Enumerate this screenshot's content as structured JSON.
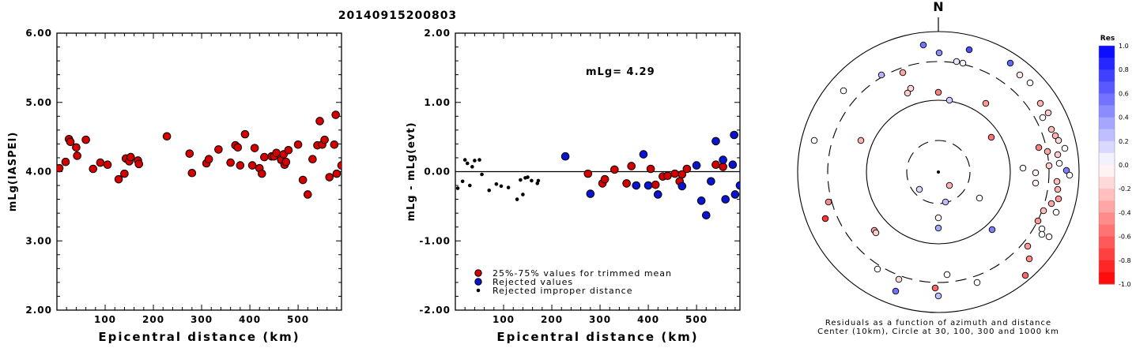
{
  "title": "20140915200803",
  "colors": {
    "trimmed": "#d40000",
    "rejected": "#0a14d0",
    "improper": "#000000"
  },
  "chart_data": [
    {
      "type": "scatter",
      "ylabel": "mLg(IASPEI)",
      "xlabel": "Epicentral distance (km)",
      "xlim": [
        0,
        590
      ],
      "ylim": [
        2.0,
        6.0
      ],
      "xticks": [
        "100",
        "200",
        "300",
        "400",
        "500"
      ],
      "yticks": [
        "2.00",
        "3.00",
        "4.00",
        "5.00",
        "6.00"
      ],
      "series": [
        {
          "marker": "trimmed",
          "points": [
            [
              5,
              4.05
            ],
            [
              18,
              4.14
            ],
            [
              25,
              4.47
            ],
            [
              28,
              4.43
            ],
            [
              40,
              4.35
            ],
            [
              42,
              4.23
            ],
            [
              60,
              4.46
            ],
            [
              75,
              4.04
            ],
            [
              90,
              4.13
            ],
            [
              105,
              4.1
            ],
            [
              128,
              3.89
            ],
            [
              140,
              3.97
            ],
            [
              143,
              4.19
            ],
            [
              150,
              4.15
            ],
            [
              153,
              4.21
            ],
            [
              168,
              4.16
            ],
            [
              170,
              4.11
            ],
            [
              228,
              4.51
            ],
            [
              275,
              4.26
            ],
            [
              280,
              3.98
            ],
            [
              310,
              4.12
            ],
            [
              315,
              4.18
            ],
            [
              335,
              4.32
            ],
            [
              360,
              4.13
            ],
            [
              370,
              4.38
            ],
            [
              375,
              4.35
            ],
            [
              380,
              4.09
            ],
            [
              390,
              4.54
            ],
            [
              405,
              4.09
            ],
            [
              410,
              4.34
            ],
            [
              420,
              4.05
            ],
            [
              425,
              3.97
            ],
            [
              430,
              4.21
            ],
            [
              445,
              4.22
            ],
            [
              450,
              4.22
            ],
            [
              455,
              4.27
            ],
            [
              465,
              4.17
            ],
            [
              470,
              4.25
            ],
            [
              472,
              4.1
            ],
            [
              475,
              4.14
            ],
            [
              480,
              4.31
            ],
            [
              500,
              4.39
            ],
            [
              510,
              3.88
            ],
            [
              520,
              3.67
            ],
            [
              530,
              4.18
            ],
            [
              540,
              4.38
            ],
            [
              545,
              4.73
            ],
            [
              550,
              4.39
            ],
            [
              555,
              4.46
            ],
            [
              565,
              3.92
            ],
            [
              575,
              4.39
            ],
            [
              578,
              4.82
            ],
            [
              580,
              3.97
            ],
            [
              590,
              4.09
            ]
          ]
        }
      ]
    },
    {
      "type": "scatter",
      "ylabel": "mLg - mLg(evt)",
      "xlabel": "Epicentral distance (km)",
      "xlim": [
        0,
        590
      ],
      "ylim": [
        -2.0,
        2.0
      ],
      "xticks": [
        "100",
        "200",
        "300",
        "400",
        "500"
      ],
      "yticks": [
        "-2.00",
        "-1.00",
        "0.00",
        "1.00",
        "2.00"
      ],
      "annotation": "mLg= 4.29",
      "legend": [
        {
          "marker": "trimmed",
          "label": "25%-75% values for trimmed mean"
        },
        {
          "marker": "rejected",
          "label": "Rejected values"
        },
        {
          "marker": "improper",
          "label": "Rejected improper distance"
        }
      ],
      "series": [
        {
          "marker": "improper",
          "points": [
            [
              5,
              -0.24
            ],
            [
              15,
              -0.14
            ],
            [
              20,
              0.17
            ],
            [
              25,
              0.12
            ],
            [
              30,
              -0.2
            ],
            [
              35,
              0.07
            ],
            [
              40,
              0.16
            ],
            [
              50,
              0.17
            ],
            [
              55,
              -0.04
            ],
            [
              70,
              -0.27
            ],
            [
              85,
              -0.18
            ],
            [
              95,
              -0.21
            ],
            [
              110,
              -0.23
            ],
            [
              128,
              -0.4
            ],
            [
              135,
              -0.12
            ],
            [
              140,
              -0.33
            ],
            [
              145,
              -0.09
            ],
            [
              150,
              -0.08
            ],
            [
              158,
              -0.13
            ],
            [
              170,
              -0.17
            ],
            [
              172,
              -0.13
            ]
          ]
        },
        {
          "marker": "trimmed",
          "points": [
            [
              275,
              -0.03
            ],
            [
              305,
              -0.17
            ],
            [
              310,
              -0.11
            ],
            [
              330,
              0.03
            ],
            [
              355,
              -0.17
            ],
            [
              365,
              0.08
            ],
            [
              405,
              0.04
            ],
            [
              415,
              -0.19
            ],
            [
              430,
              -0.07
            ],
            [
              440,
              -0.06
            ],
            [
              455,
              -0.03
            ],
            [
              465,
              -0.14
            ],
            [
              470,
              -0.04
            ],
            [
              480,
              0.04
            ],
            [
              540,
              0.1
            ],
            [
              555,
              0.07
            ]
          ]
        },
        {
          "marker": "rejected",
          "points": [
            [
              228,
              0.22
            ],
            [
              280,
              -0.32
            ],
            [
              375,
              -0.2
            ],
            [
              390,
              0.25
            ],
            [
              400,
              -0.2
            ],
            [
              420,
              -0.33
            ],
            [
              470,
              -0.21
            ],
            [
              500,
              0.09
            ],
            [
              510,
              -0.42
            ],
            [
              520,
              -0.63
            ],
            [
              530,
              -0.14
            ],
            [
              540,
              0.44
            ],
            [
              555,
              0.17
            ],
            [
              560,
              -0.4
            ],
            [
              575,
              0.1
            ],
            [
              578,
              0.53
            ],
            [
              580,
              -0.33
            ],
            [
              590,
              -0.2
            ]
          ]
        }
      ]
    },
    {
      "type": "polar-scatter",
      "north_label": "N",
      "caption_lines": [
        "Residuals as a function of azimuth and distance",
        "Center (10km), Circle at 30, 100, 300 and 1000 km"
      ],
      "colorbar": {
        "title": "Res",
        "min": -1.0,
        "max": 1.0,
        "ticks": [
          "1.0",
          "0.8",
          "0.6",
          "0.4",
          "0.2",
          "0.0",
          "-0.2",
          "-0.4",
          "-0.6",
          "-0.8",
          "-1.0"
        ]
      },
      "points": [
        [
          1168,
          57,
          0.55
        ],
        [
          1226,
          63,
          0.7
        ],
        [
          1188,
          67,
          0.45
        ],
        [
          1210,
          78,
          0.1
        ],
        [
          1218,
          80,
          0.05
        ],
        [
          1278,
          80,
          0.6
        ],
        [
          1142,
          92,
          -0.35
        ],
        [
          1115,
          95,
          0.3
        ],
        [
          1290,
          95,
          -0.1
        ],
        [
          1303,
          105,
          0.0
        ],
        [
          1152,
          112,
          -0.15
        ],
        [
          1067,
          115,
          0.0
        ],
        [
          1148,
          118,
          -0.2
        ],
        [
          1187,
          117,
          -0.5
        ],
        [
          1201,
          127,
          0.2
        ],
        [
          1247,
          131,
          -0.4
        ],
        [
          1316,
          131,
          -0.3
        ],
        [
          1326,
          143,
          -0.2
        ],
        [
          1319,
          149,
          0.0
        ],
        [
          1330,
          164,
          -0.25
        ],
        [
          1335,
          172,
          -0.3
        ],
        [
          1030,
          178,
          0.0
        ],
        [
          1089,
          178,
          -0.3
        ],
        [
          1254,
          174,
          -0.55
        ],
        [
          1339,
          178,
          -0.15
        ],
        [
          1314,
          187,
          -0.5
        ],
        [
          1347,
          188,
          0.0
        ],
        [
          1325,
          192,
          -0.35
        ],
        [
          1338,
          196,
          -0.2
        ],
        [
          1340,
          207,
          0.0
        ],
        [
          1294,
          213,
          0.0
        ],
        [
          1349,
          216,
          0.5
        ],
        [
          1310,
          219,
          -0.05
        ],
        [
          1327,
          210,
          -0.2
        ],
        [
          1353,
          222,
          0.0
        ],
        [
          1337,
          230,
          -0.25
        ],
        [
          1310,
          232,
          -0.05
        ],
        [
          1338,
          240,
          -0.3
        ],
        [
          1163,
          240,
          0.15
        ],
        [
          1201,
          235,
          -0.3
        ],
        [
          1339,
          252,
          -0.4
        ],
        [
          1239,
          251,
          0.0
        ],
        [
          1048,
          256,
          -0.45
        ],
        [
          1330,
          258,
          -0.35
        ],
        [
          1196,
          256,
          0.25
        ],
        [
          1336,
          269,
          0.0
        ],
        [
          1044,
          277,
          -0.8
        ],
        [
          1320,
          267,
          -0.25
        ],
        [
          1187,
          276,
          -0.05
        ],
        [
          1313,
          280,
          -0.4
        ],
        [
          1106,
          292,
          -0.35
        ],
        [
          1108,
          295,
          -0.2
        ],
        [
          1187,
          289,
          0.35
        ],
        [
          1255,
          291,
          0.5
        ],
        [
          1318,
          290,
          0.0
        ],
        [
          1318,
          297,
          0.0
        ],
        [
          1327,
          300,
          -0.05
        ],
        [
          1300,
          312,
          -0.4
        ],
        [
          1302,
          328,
          -0.45
        ],
        [
          1110,
          341,
          0.0
        ],
        [
          1198,
          348,
          0.0
        ],
        [
          1137,
          354,
          -0.15
        ],
        [
          1297,
          349,
          -0.6
        ],
        [
          1236,
          358,
          0.0
        ],
        [
          1183,
          365,
          -0.6
        ],
        [
          1133,
          369,
          0.55
        ],
        [
          1187,
          375,
          0.25
        ]
      ]
    }
  ]
}
